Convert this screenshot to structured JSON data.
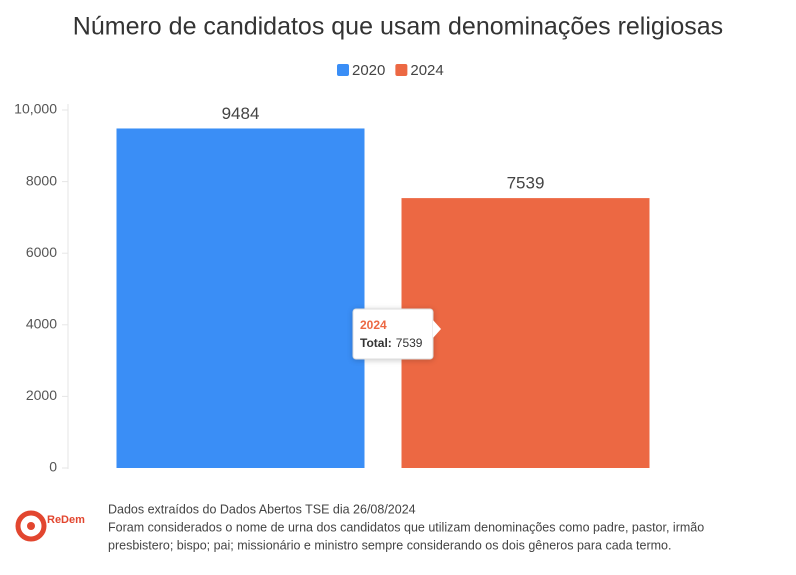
{
  "chart_data": {
    "type": "bar",
    "title": "Número de candidatos que usam denominações religiosas",
    "categories": [
      null
    ],
    "series": [
      {
        "name": "2020",
        "color": "#3a8ef6",
        "values": [
          9484
        ]
      },
      {
        "name": "2024",
        "color": "#ec6843",
        "values": [
          7539
        ]
      }
    ],
    "ylim": [
      0,
      10000
    ],
    "yticks": [
      0,
      2000,
      4000,
      6000,
      8000,
      {
        "value": 10000,
        "label": "10,000"
      }
    ],
    "legend": "top",
    "tooltip": {
      "title": "2024",
      "label": "Total:",
      "value": 7539
    },
    "notes": [
      "Dados extraídos do Dados Abertos TSE dia 26/08/2024",
      "Foram considerados o nome de urna dos candidatos que utilizam denominações como padre, pastor, irmão",
      "presbistero; bispo; pai; missionário e ministro sempre considerando os dois gêneros para cada termo."
    ],
    "logo": "ReDem"
  }
}
